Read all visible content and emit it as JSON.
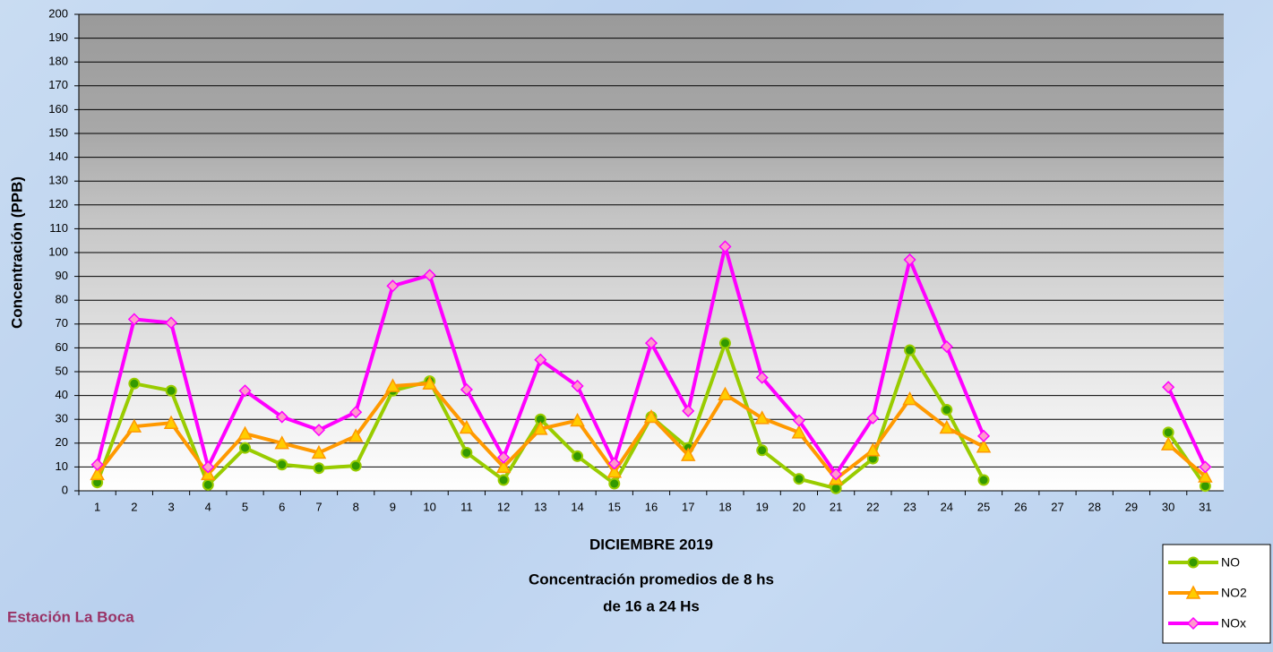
{
  "chart_data": {
    "type": "line",
    "y_label": "Concentración  (PPB)",
    "title_lines": [
      "DICIEMBRE 2019",
      "Concentración promedios de 8 hs",
      "de 16 a 24 Hs"
    ],
    "station": "Estación La Boca",
    "categories": [
      "1",
      "2",
      "3",
      "4",
      "5",
      "6",
      "7",
      "8",
      "9",
      "10",
      "11",
      "12",
      "13",
      "14",
      "15",
      "16",
      "17",
      "18",
      "19",
      "20",
      "21",
      "22",
      "23",
      "24",
      "25",
      "26",
      "27",
      "28",
      "29",
      "30",
      "31"
    ],
    "series": [
      {
        "name": "NO",
        "color": "#99cc00",
        "marker": "circle",
        "values": [
          3.5,
          45,
          42,
          2.5,
          18,
          11,
          9.5,
          10.5,
          42,
          46,
          16,
          4.5,
          30,
          14.5,
          3,
          31,
          18,
          62,
          17,
          5,
          1,
          13.5,
          59,
          34,
          4.5,
          null,
          null,
          null,
          null,
          24.5,
          2
        ]
      },
      {
        "name": "NO2",
        "color": "#ff9900",
        "marker": "triangle",
        "values": [
          7,
          27,
          28.5,
          7,
          24,
          20,
          16,
          23,
          44,
          45,
          26.5,
          10,
          26,
          29.5,
          8,
          31,
          15,
          40.5,
          30.5,
          24.5,
          5,
          17,
          38.5,
          26.5,
          18.5,
          null,
          null,
          null,
          null,
          19.5,
          6
        ]
      },
      {
        "name": "NOx",
        "color": "#ff00ff",
        "marker": "diamond",
        "values": [
          11,
          72,
          70.5,
          10,
          42,
          31,
          25.5,
          33,
          86,
          90.5,
          42.5,
          14,
          55,
          44,
          11.5,
          62,
          33.5,
          102.5,
          47.5,
          29.5,
          7,
          30.5,
          97,
          60.5,
          23,
          null,
          null,
          null,
          null,
          43.5,
          10
        ]
      }
    ],
    "ylim": [
      0,
      200
    ],
    "yticks": [
      0,
      10,
      20,
      30,
      40,
      50,
      60,
      70,
      80,
      90,
      100,
      110,
      120,
      130,
      140,
      150,
      160,
      170,
      180,
      190,
      200
    ],
    "grid": true,
    "legend": "bottom-right"
  }
}
